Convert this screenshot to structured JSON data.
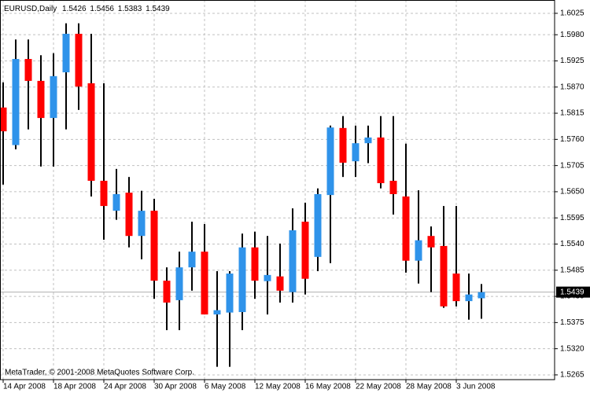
{
  "chart_data": {
    "type": "candlestick",
    "title": "EURUSD,Daily",
    "footer": "MetaTrader, © 2001-2008 MetaQuotes Software Corp.",
    "categories": [
      "14 Apr 2008",
      null,
      null,
      null,
      "18 Apr 2008",
      null,
      null,
      null,
      "24 Apr 2008",
      null,
      null,
      null,
      "30 Apr 2008",
      null,
      null,
      null,
      "6 May 2008",
      null,
      null,
      null,
      "12 May 2008",
      null,
      null,
      null,
      "16 May 2008",
      null,
      null,
      null,
      "22 May 2008",
      null,
      null,
      null,
      "28 May 2008",
      null,
      null,
      null,
      "3 Jun 2008",
      null,
      null
    ],
    "open": [
      1.5827,
      1.5748,
      1.5929,
      1.5883,
      1.5805,
      1.5901,
      1.5982,
      1.5878,
      1.5673,
      1.561,
      1.5648,
      1.5557,
      1.561,
      1.5463,
      1.5422,
      1.5491,
      1.5524,
      1.5392,
      1.5396,
      1.5397,
      1.5533,
      1.5462,
      1.5472,
      1.5439,
      1.5587,
      1.5513,
      1.5643,
      1.5784,
      1.5714,
      1.5752,
      1.5764,
      1.5673,
      1.564,
      1.5505,
      1.5557,
      1.5536,
      1.5478,
      1.542,
      1.5426
    ],
    "high": [
      1.588,
      1.597,
      1.597,
      1.5937,
      1.5941,
      1.6004,
      1.6004,
      1.5982,
      1.5878,
      1.5698,
      1.5681,
      1.5652,
      1.5635,
      1.5491,
      1.5524,
      1.5587,
      1.5582,
      1.5483,
      1.5483,
      1.5562,
      1.5566,
      1.5557,
      1.5541,
      1.5615,
      1.5627,
      1.5657,
      1.5789,
      1.5809,
      1.5789,
      1.5789,
      1.5809,
      1.5809,
      1.5751,
      1.5653,
      1.5577,
      1.562,
      1.562,
      1.5478,
      1.5456
    ],
    "low": [
      1.5665,
      1.5739,
      1.5781,
      1.5703,
      1.5703,
      1.5781,
      1.5822,
      1.564,
      1.5549,
      1.5591,
      1.5533,
      1.5508,
      1.5425,
      1.5359,
      1.5359,
      1.5442,
      1.5392,
      1.5282,
      1.5282,
      1.5359,
      1.5425,
      1.5392,
      1.5417,
      1.5417,
      1.5434,
      1.5483,
      1.55,
      1.5681,
      1.5681,
      1.571,
      1.5657,
      1.5602,
      1.548,
      1.5457,
      1.5439,
      1.5406,
      1.5409,
      1.5381,
      1.5383
    ],
    "close": [
      1.5777,
      1.5929,
      1.5883,
      1.5805,
      1.5893,
      1.5982,
      1.5871,
      1.5673,
      1.562,
      1.5645,
      1.5557,
      1.561,
      1.5463,
      1.5417,
      1.5491,
      1.5524,
      1.5392,
      1.5401,
      1.5478,
      1.5533,
      1.5463,
      1.5475,
      1.5442,
      1.5569,
      1.5467,
      1.5645,
      1.5785,
      1.5711,
      1.5752,
      1.5764,
      1.5668,
      1.5645,
      1.5505,
      1.5548,
      1.5533,
      1.5409,
      1.542,
      1.5434,
      1.5439
    ],
    "up_color": "#2f93ea",
    "down_color": "#ff0000",
    "wick_color": "#000000",
    "ylim": [
      1.5255,
      1.6053
    ],
    "yticks": [
      1.6025,
      {
        "value": 1.598,
        "label": "1.5980"
      },
      1.5925,
      {
        "value": 1.587,
        "label": "1.5870"
      },
      1.5815,
      {
        "value": 1.576,
        "label": "1.5760"
      },
      1.5705,
      {
        "value": 1.565,
        "label": "1.5650"
      },
      1.5595,
      {
        "value": 1.554,
        "label": "1.5540"
      },
      1.5485,
      {
        "value": 1.543,
        "label": "1.5430"
      },
      1.5375,
      {
        "value": 1.532,
        "label": "1.5320"
      },
      1.5265
    ],
    "grid": true
  }
}
